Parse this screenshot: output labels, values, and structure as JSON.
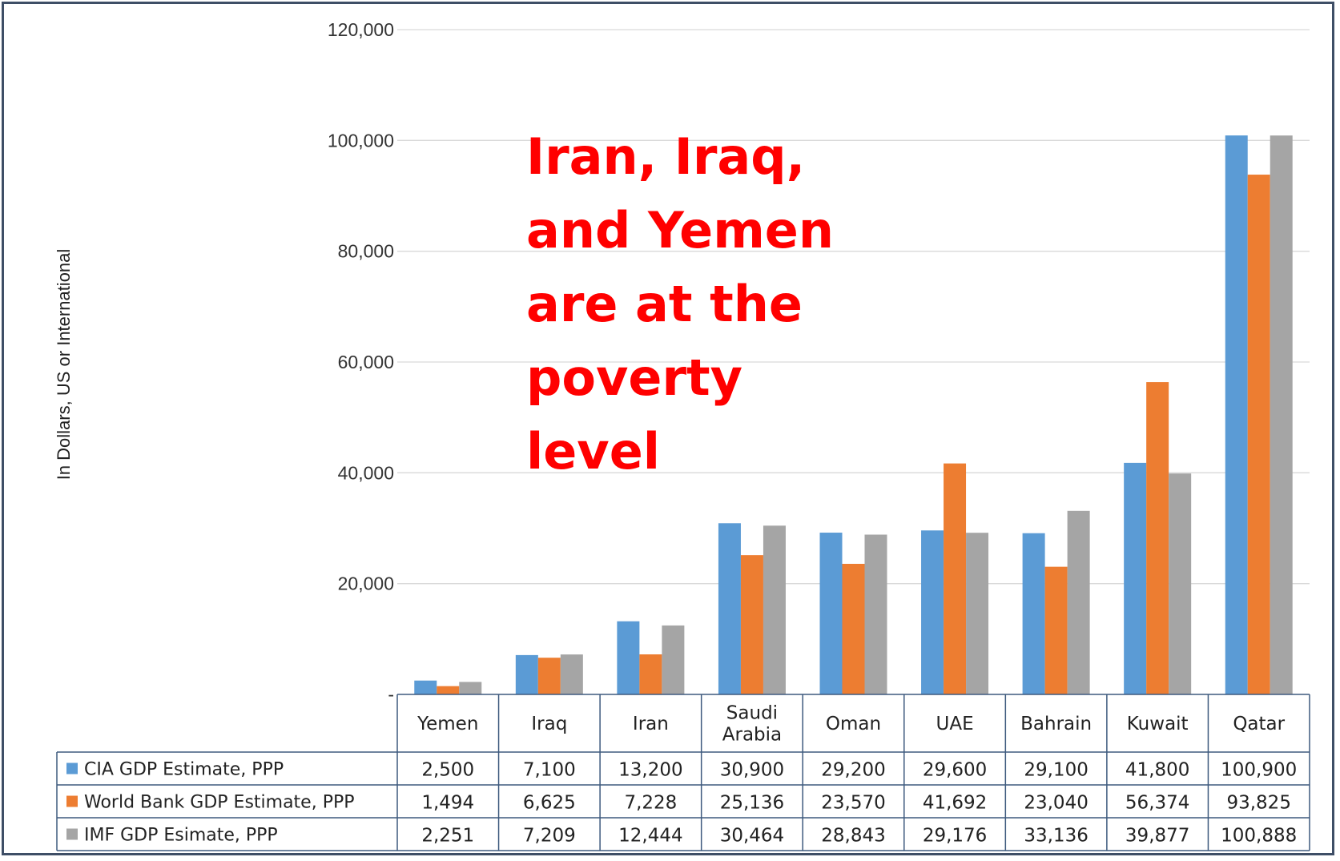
{
  "chart_data": {
    "type": "bar",
    "annotation": "Iran, Iraq, and Yemen are at the poverty level",
    "xlabel": "",
    "ylabel": "In Dollars, US or International",
    "ylim": [
      0,
      120000
    ],
    "y_ticks": [
      "-",
      "20,000",
      "40,000",
      "60,000",
      "80,000",
      "100,000",
      "120,000"
    ],
    "y_tick_values": [
      0,
      20000,
      40000,
      60000,
      80000,
      100000,
      120000
    ],
    "grid": true,
    "legend_placement": "data table below chart",
    "categories": [
      "Yemen",
      "Iraq",
      "Iran",
      "Saudi Arabia",
      "Oman",
      "UAE",
      "Bahrain",
      "Kuwait",
      "Qatar"
    ],
    "series": [
      {
        "name": "CIA GDP Estimate, PPP",
        "color": "#5b9bd5",
        "values": [
          2500,
          7100,
          13200,
          30900,
          29200,
          29600,
          29100,
          41800,
          100900
        ],
        "labels": [
          "2,500",
          "7,100",
          "13,200",
          "30,900",
          "29,200",
          "29,600",
          "29,100",
          "41,800",
          "100,900"
        ]
      },
      {
        "name": "World Bank GDP Estimate, PPP",
        "color": "#ed7d31",
        "values": [
          1494,
          6625,
          7228,
          25136,
          23570,
          41692,
          23040,
          56374,
          93825
        ],
        "labels": [
          "1,494",
          "6,625",
          "7,228",
          "25,136",
          "23,570",
          "41,692",
          "23,040",
          "56,374",
          "93,825"
        ]
      },
      {
        "name": "IMF GDP Esimate, PPP",
        "color": "#a5a5a5",
        "values": [
          2251,
          7209,
          12444,
          30464,
          28843,
          29176,
          33136,
          39877,
          100888
        ],
        "labels": [
          "2,251",
          "7,209",
          "12,444",
          "30,464",
          "28,843",
          "29,176",
          "33,136",
          "39,877",
          "100,888"
        ]
      }
    ]
  }
}
